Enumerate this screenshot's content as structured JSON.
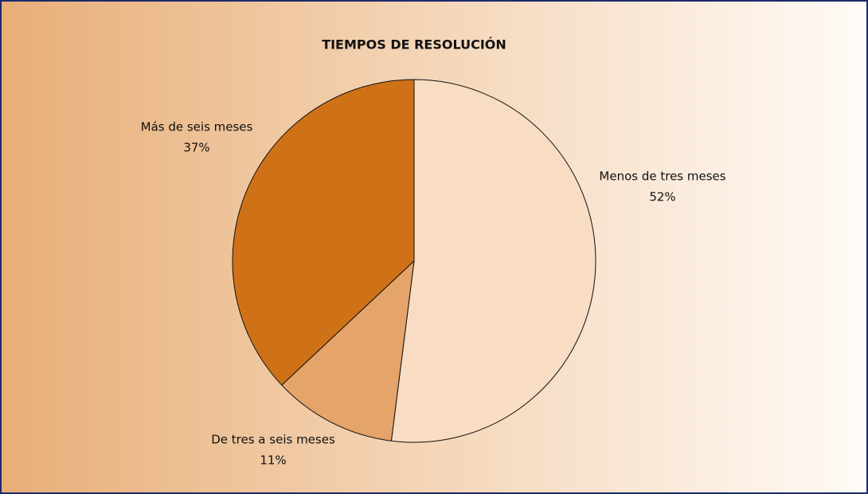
{
  "chart_data": {
    "type": "pie",
    "title": "TIEMPOS DE RESOLUCIÓN",
    "categories": [
      "Menos de tres meses",
      "De tres a seis meses",
      "Más de seis meses"
    ],
    "values": [
      52,
      11,
      37
    ],
    "value_labels": [
      "52%",
      "11%",
      "37%"
    ],
    "colors": [
      "#f8dcc3",
      "#e5a46a",
      "#cf7217"
    ]
  }
}
